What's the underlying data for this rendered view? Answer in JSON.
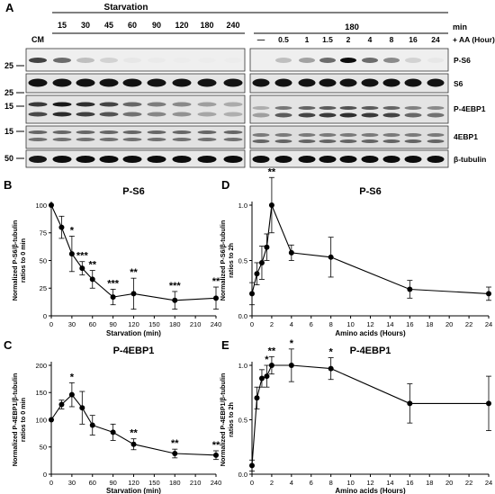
{
  "figure": {
    "panel_letters": [
      "A",
      "B",
      "C",
      "D",
      "E"
    ],
    "blot": {
      "starvation_header": "Starvation",
      "min_label": "min",
      "aa_label": "+ AA (Hour)",
      "left_lane_labels": [
        "CM",
        "15",
        "30",
        "45",
        "60",
        "90",
        "120",
        "180",
        "240"
      ],
      "right_top_label": "180",
      "right_lane_labels": [
        "—",
        "0.5",
        "1",
        "1.5",
        "2",
        "4",
        "8",
        "16",
        "24"
      ],
      "bands": [
        {
          "name": "P-S6",
          "marker": "25"
        },
        {
          "name": "S6",
          "marker": "25"
        },
        {
          "name": "P-4EBP1",
          "marker": "15"
        },
        {
          "name": "4EBP1",
          "marker": "15"
        },
        {
          "name": "β-tubulin",
          "marker": "50"
        }
      ],
      "intensity": {
        "ps6_left": [
          0.72,
          0.55,
          0.2,
          0.12,
          0.03,
          0.02,
          0.01,
          0.01,
          0.01
        ],
        "ps6_right": [
          0.0,
          0.2,
          0.32,
          0.55,
          0.95,
          0.55,
          0.42,
          0.12,
          0.03
        ],
        "p4ebp1_left": [
          0.75,
          0.9,
          0.8,
          0.7,
          0.55,
          0.45,
          0.4,
          0.3,
          0.25
        ],
        "p4ebp1_right": [
          0.3,
          0.6,
          0.7,
          0.75,
          0.8,
          0.75,
          0.7,
          0.55,
          0.5
        ]
      }
    }
  },
  "chart_data": [
    {
      "panel": "B",
      "type": "line",
      "title": "P-S6",
      "xlabel": "Starvation (min)",
      "ylabel": "Normalized P-S6/β-tubulin ratios to 0 min",
      "x": [
        0,
        15,
        30,
        45,
        60,
        90,
        120,
        180,
        240
      ],
      "y": [
        100,
        80,
        56,
        43,
        33,
        17,
        20,
        14,
        16
      ],
      "err": [
        0,
        10,
        16,
        6,
        8,
        7,
        14,
        8,
        10
      ],
      "sig": [
        "",
        "",
        "*",
        "***",
        "**",
        "***",
        "**",
        "***",
        "**"
      ],
      "xlim": [
        0,
        240
      ],
      "xticks": [
        0,
        30,
        60,
        90,
        120,
        150,
        180,
        210,
        240
      ],
      "ylim": [
        0,
        100
      ],
      "yticks": [
        0,
        25,
        50,
        75,
        100
      ]
    },
    {
      "panel": "C",
      "type": "line",
      "title": "P-4EBP1",
      "xlabel": "Starvation (min)",
      "ylabel": "Normalized P-4EBP1/β-tubulin ratios to 0 min",
      "x": [
        0,
        15,
        30,
        45,
        60,
        90,
        120,
        180,
        240
      ],
      "y": [
        100,
        128,
        146,
        122,
        90,
        77,
        55,
        38,
        35
      ],
      "err": [
        0,
        8,
        22,
        30,
        18,
        15,
        10,
        8,
        8
      ],
      "sig": [
        "",
        "",
        "*",
        "",
        "",
        "",
        "**",
        "**",
        "**"
      ],
      "xlim": [
        0,
        240
      ],
      "xticks": [
        0,
        30,
        60,
        90,
        120,
        150,
        180,
        210,
        240
      ],
      "ylim": [
        0,
        200
      ],
      "yticks": [
        0,
        50,
        100,
        150,
        200
      ]
    },
    {
      "panel": "D",
      "type": "line",
      "title": "P-S6",
      "xlabel": "Amino acids (Hours)",
      "ylabel": "Normalized P-S6/β-tubulin ratios to 2h",
      "x": [
        0,
        0.5,
        1,
        1.5,
        2,
        4,
        8,
        16,
        24
      ],
      "y": [
        0.2,
        0.38,
        0.48,
        0.62,
        1.0,
        0.57,
        0.53,
        0.24,
        0.2
      ],
      "err": [
        0.1,
        0.1,
        0.15,
        0.12,
        0.25,
        0.07,
        0.18,
        0.08,
        0.06
      ],
      "sig": [
        "",
        "",
        "",
        "",
        "**",
        "",
        "",
        "",
        ""
      ],
      "xlim": [
        0,
        24
      ],
      "xticks": [
        0,
        2,
        4,
        6,
        8,
        10,
        12,
        14,
        16,
        18,
        20,
        22,
        24
      ],
      "ylim": [
        0,
        1.0
      ],
      "yticks": [
        0.0,
        0.5,
        1.0
      ]
    },
    {
      "panel": "E",
      "type": "line",
      "title": "P-4EBP1",
      "xlabel": "Amino acids (Hours)",
      "ylabel": "Normalized P-4EBP1/β-tubulin ratios to 2h",
      "x": [
        0,
        0.5,
        1,
        1.5,
        2,
        4,
        8,
        16,
        24
      ],
      "y": [
        0.08,
        0.7,
        0.88,
        0.9,
        1.0,
        1.0,
        0.97,
        0.65,
        0.65
      ],
      "err": [
        0.05,
        0.1,
        0.08,
        0.1,
        0.08,
        0.15,
        0.1,
        0.18,
        0.25
      ],
      "sig": [
        "",
        "",
        "",
        "*",
        "**",
        "*",
        "*",
        "",
        ""
      ],
      "xlim": [
        0,
        24
      ],
      "xticks": [
        0,
        2,
        4,
        6,
        8,
        10,
        12,
        14,
        16,
        18,
        20,
        22,
        24
      ],
      "ylim": [
        0,
        1.0
      ],
      "yticks": [
        0.0,
        0.5,
        1.0
      ]
    }
  ]
}
